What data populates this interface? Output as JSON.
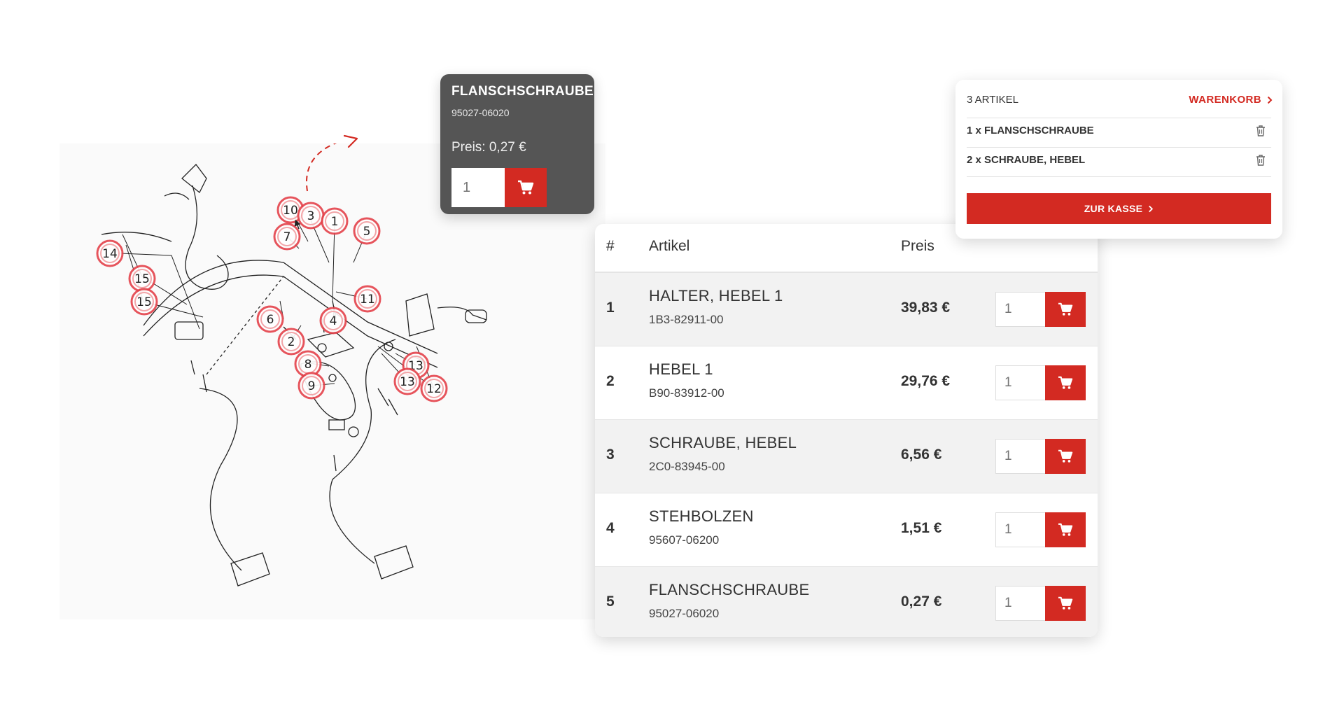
{
  "tooltip": {
    "name": "FLANSCHSCHRAUBE",
    "number": "95027-06020",
    "price": "Preis: 0,27 €",
    "qty_placeholder": "1"
  },
  "table": {
    "headers": {
      "num": "#",
      "article": "Artikel",
      "price": "Preis"
    },
    "rows": [
      {
        "num": "1",
        "name": "HALTER, HEBEL 1",
        "code": "1B3-82911-00",
        "price": "39,83 €",
        "qty_placeholder": "1"
      },
      {
        "num": "2",
        "name": "HEBEL 1",
        "code": "B90-83912-00",
        "price": "29,76 €",
        "qty_placeholder": "1"
      },
      {
        "num": "3",
        "name": "SCHRAUBE, HEBEL",
        "code": "2C0-83945-00",
        "price": "6,56 €",
        "qty_placeholder": "1"
      },
      {
        "num": "4",
        "name": "STEHBOLZEN",
        "code": "95607-06200",
        "price": "1,51 €",
        "qty_placeholder": "1"
      },
      {
        "num": "5",
        "name": "FLANSCHSCHRAUBE",
        "code": "95027-06020",
        "price": "0,27 €",
        "qty_placeholder": "1"
      }
    ]
  },
  "mini_cart": {
    "count": "3 ARTIKEL",
    "cart_link": "WARENKORB",
    "items": [
      {
        "label": "1 x FLANSCHSCHRAUBE"
      },
      {
        "label": "2 x SCHRAUBE, HEBEL"
      }
    ],
    "checkout": "ZUR KASSE"
  },
  "diagram": {
    "callouts": [
      "1",
      "2",
      "3",
      "4",
      "5",
      "6",
      "7",
      "8",
      "9",
      "10",
      "11",
      "12",
      "13",
      "13",
      "14",
      "15",
      "15"
    ]
  },
  "colors": {
    "accent": "#d32a22",
    "tooltip_bg": "#555555",
    "row_alt": "#f2f2f2",
    "callout_ring": "#e4434b"
  },
  "icons": {
    "cart": "shopping-cart-icon",
    "trash": "trash-icon",
    "chevron": "chevron-right-icon"
  }
}
